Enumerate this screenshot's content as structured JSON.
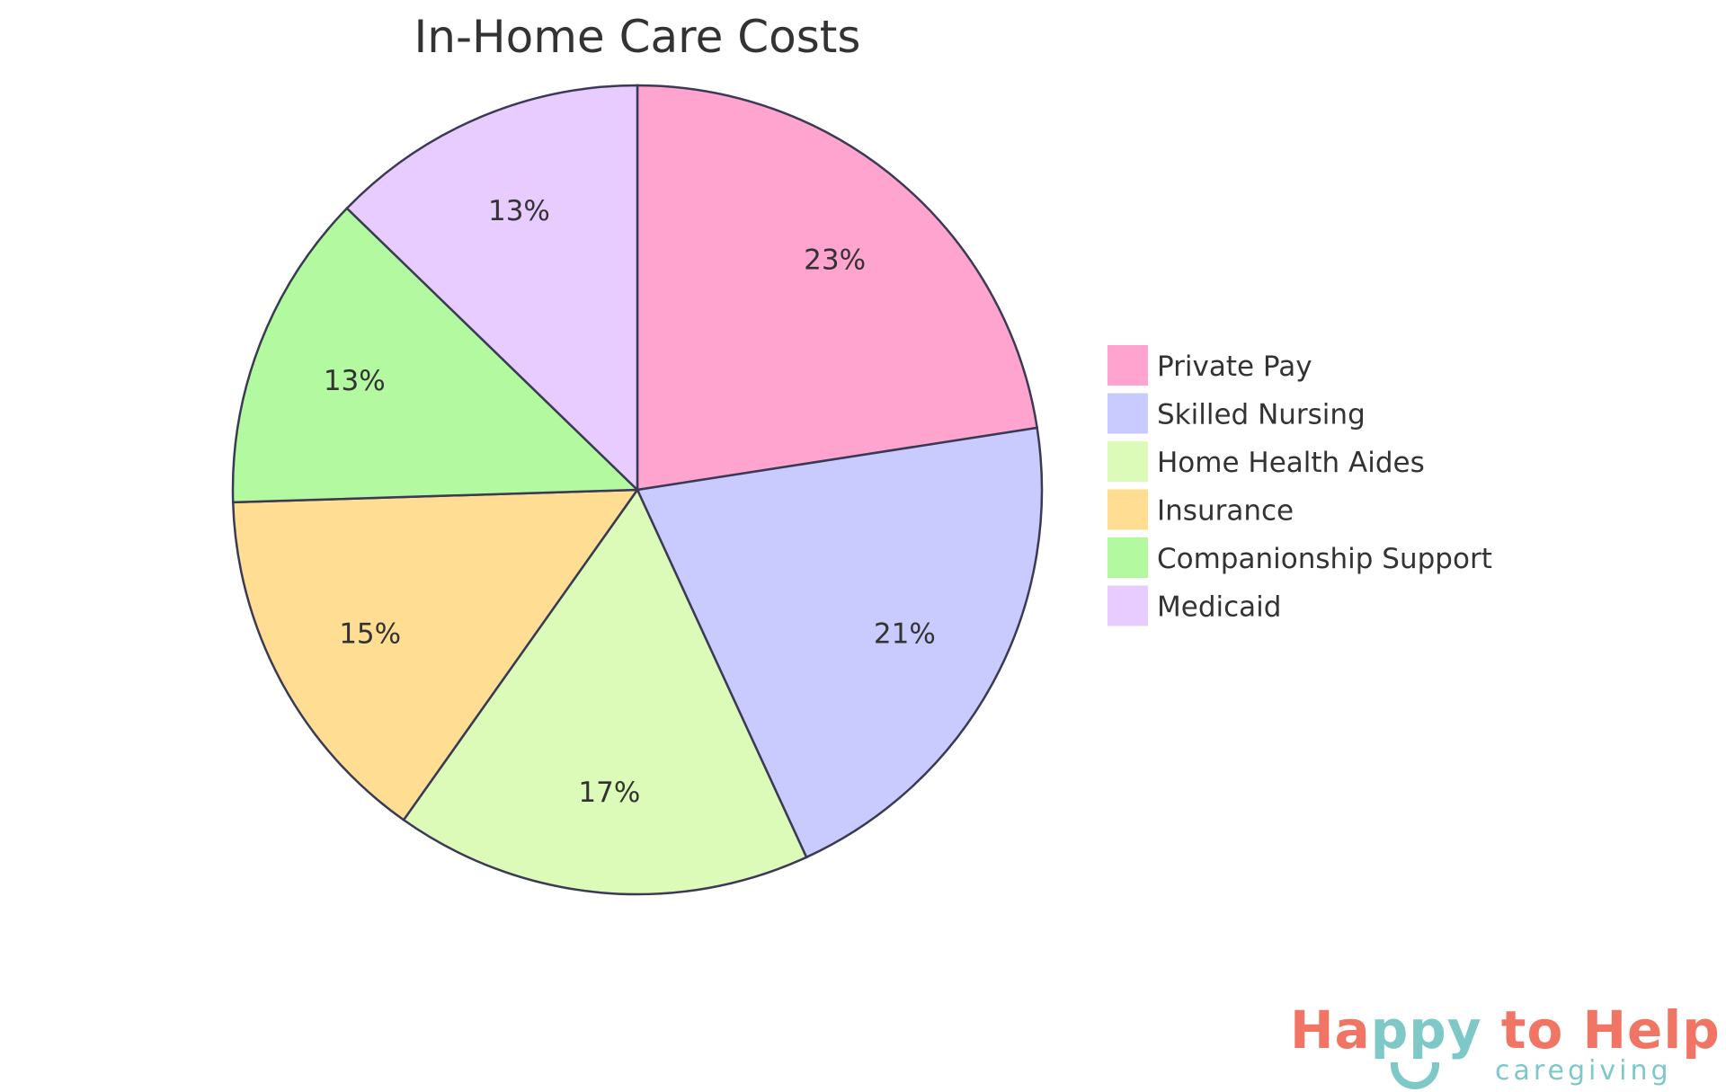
{
  "chart_data": {
    "type": "pie",
    "title": "In-Home Care Costs",
    "legend_position": "right",
    "slices": [
      {
        "label": "Private Pay",
        "value": 23,
        "display": "23%",
        "color": "#ffa3cf"
      },
      {
        "label": "Skilled Nursing",
        "value": 21,
        "display": "21%",
        "color": "#c9cbff"
      },
      {
        "label": "Home Health Aides",
        "value": 17,
        "display": "17%",
        "color": "#dcfab8"
      },
      {
        "label": "Insurance",
        "value": 15,
        "display": "15%",
        "color": "#ffde94"
      },
      {
        "label": "Companionship Support",
        "value": 13,
        "display": "13%",
        "color": "#b3f9a0"
      },
      {
        "label": "Medicaid",
        "value": 13,
        "display": "13%",
        "color": "#e8cbff"
      }
    ]
  },
  "logo": {
    "part1": "Ha",
    "part2": "ppy",
    "part3": " to Help",
    "sub": "caregiving"
  }
}
